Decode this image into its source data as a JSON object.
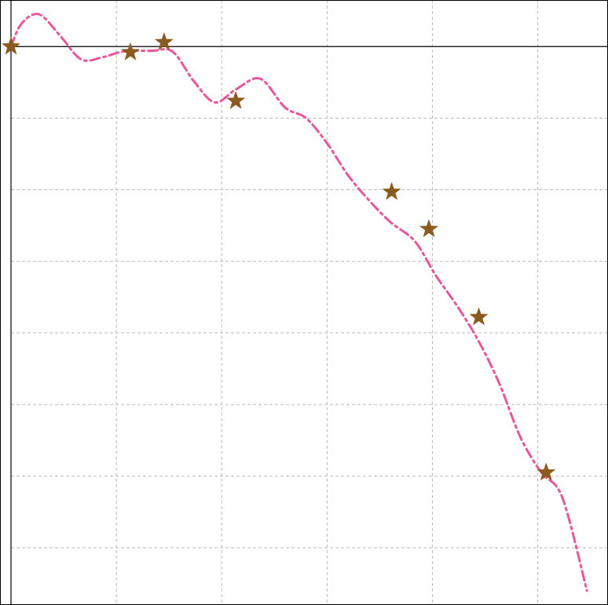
{
  "chart_data": {
    "type": "scatter",
    "title": "",
    "xlabel": "",
    "ylabel": "",
    "grid": true,
    "xlim": [
      0,
      8.5
    ],
    "ylim": [
      -7.8,
      0.65
    ],
    "x_gridlines": [
      1.5,
      3,
      4.5,
      6,
      7.5
    ],
    "y_gridlines": [
      -7,
      -6,
      -5,
      -4,
      -3,
      -2,
      -1
    ],
    "y_reference_line": 0,
    "colors": {
      "curve": "#e8579a",
      "points": "#8b5a1f",
      "grid": "#bbbbbb",
      "axis": "#000000"
    },
    "series": [
      {
        "kind": "smooth-curve",
        "style": "dash-dot",
        "x": [
          0.0,
          0.15,
          0.4,
          0.7,
          1.0,
          1.3,
          1.6,
          2.0,
          2.3,
          2.6,
          2.9,
          3.2,
          3.55,
          3.9,
          4.2,
          4.5,
          4.8,
          5.1,
          5.4,
          5.75,
          6.05,
          6.35,
          6.65,
          6.95,
          7.25,
          7.55,
          7.85,
          8.2
        ],
        "y": [
          0.0,
          0.32,
          0.45,
          0.15,
          -0.18,
          -0.15,
          -0.07,
          -0.06,
          -0.07,
          -0.48,
          -0.78,
          -0.6,
          -0.45,
          -0.85,
          -1.0,
          -1.35,
          -1.8,
          -2.15,
          -2.45,
          -2.72,
          -3.2,
          -3.62,
          -4.1,
          -4.7,
          -5.45,
          -5.95,
          -6.3,
          -7.6
        ]
      },
      {
        "kind": "markers",
        "marker": "star",
        "x": [
          0.0,
          1.7,
          2.18,
          3.2,
          5.42,
          5.95,
          6.66,
          7.62
        ],
        "y": [
          0.0,
          -0.08,
          0.06,
          -0.76,
          -2.03,
          -2.55,
          -3.78,
          -5.95
        ]
      }
    ]
  }
}
